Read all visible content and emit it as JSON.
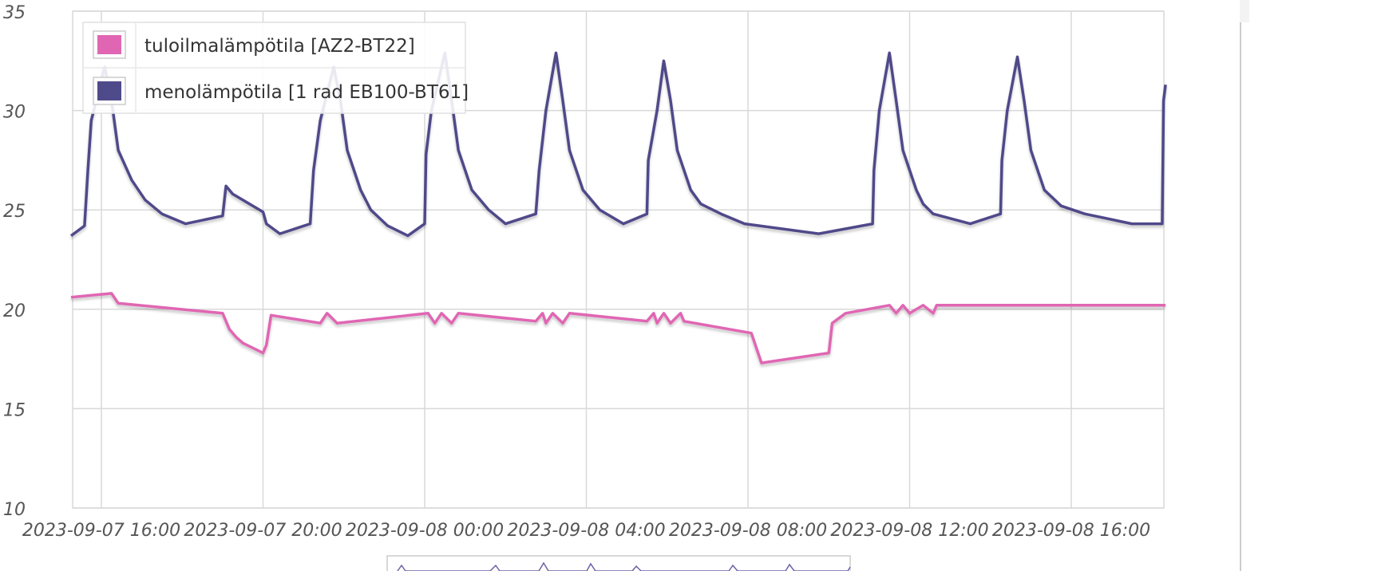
{
  "chart_data": {
    "type": "line",
    "ylim": [
      10,
      35
    ],
    "grid": true,
    "legend_position": "top-left",
    "y_ticks": [
      "10",
      "15",
      "20",
      "25",
      "30",
      "35"
    ],
    "x_tick_labels": [
      "2023-09-07 16:00",
      "2023-09-07 20:00",
      "2023-09-08 00:00",
      "2023-09-08 04:00",
      "2023-09-08 08:00",
      "2023-09-08 12:00",
      "2023-09-08 16:00"
    ],
    "series": [
      {
        "name": "tuloilmalämpötila [AZ2-BT22]",
        "color": "#e066b3",
        "points": [
          [
            "2023-09-07 15:15",
            20.6
          ],
          [
            "2023-09-07 16:15",
            20.8
          ],
          [
            "2023-09-07 16:25",
            20.3
          ],
          [
            "2023-09-07 19:00",
            19.8
          ],
          [
            "2023-09-07 19:10",
            19.0
          ],
          [
            "2023-09-07 19:20",
            18.6
          ],
          [
            "2023-09-07 19:30",
            18.3
          ],
          [
            "2023-09-07 20:00",
            17.8
          ],
          [
            "2023-09-07 20:05",
            18.2
          ],
          [
            "2023-09-07 20:12",
            19.7
          ],
          [
            "2023-09-07 21:25",
            19.3
          ],
          [
            "2023-09-07 21:35",
            19.8
          ],
          [
            "2023-09-07 21:50",
            19.3
          ],
          [
            "2023-09-08 00:05",
            19.8
          ],
          [
            "2023-09-08 00:15",
            19.3
          ],
          [
            "2023-09-08 00:25",
            19.8
          ],
          [
            "2023-09-08 00:40",
            19.3
          ],
          [
            "2023-09-08 00:50",
            19.8
          ],
          [
            "2023-09-08 02:45",
            19.4
          ],
          [
            "2023-09-08 02:55",
            19.8
          ],
          [
            "2023-09-08 03:00",
            19.3
          ],
          [
            "2023-09-08 03:10",
            19.8
          ],
          [
            "2023-09-08 03:25",
            19.3
          ],
          [
            "2023-09-08 03:35",
            19.8
          ],
          [
            "2023-09-08 05:30",
            19.4
          ],
          [
            "2023-09-08 05:40",
            19.8
          ],
          [
            "2023-09-08 05:45",
            19.3
          ],
          [
            "2023-09-08 05:55",
            19.8
          ],
          [
            "2023-09-08 06:05",
            19.3
          ],
          [
            "2023-09-08 06:20",
            19.8
          ],
          [
            "2023-09-08 06:25",
            19.4
          ],
          [
            "2023-09-08 08:05",
            18.8
          ],
          [
            "2023-09-08 08:20",
            17.3
          ],
          [
            "2023-09-08 10:00",
            17.8
          ],
          [
            "2023-09-08 10:05",
            19.3
          ],
          [
            "2023-09-08 10:25",
            19.8
          ],
          [
            "2023-09-08 11:30",
            20.2
          ],
          [
            "2023-09-08 11:40",
            19.8
          ],
          [
            "2023-09-08 11:50",
            20.2
          ],
          [
            "2023-09-08 12:00",
            19.8
          ],
          [
            "2023-09-08 12:20",
            20.2
          ],
          [
            "2023-09-08 12:35",
            19.8
          ],
          [
            "2023-09-08 12:40",
            20.2
          ],
          [
            "2023-09-08 18:20",
            20.2
          ]
        ]
      },
      {
        "name": "menolämpötila [1 rad EB100-BT61]",
        "color": "#4f4a8a",
        "points": [
          [
            "2023-09-07 15:15",
            23.7
          ],
          [
            "2023-09-07 15:35",
            24.2
          ],
          [
            "2023-09-07 15:40",
            27.0
          ],
          [
            "2023-09-07 15:45",
            29.5
          ],
          [
            "2023-09-07 16:05",
            32.2
          ],
          [
            "2023-09-07 16:15",
            30.5
          ],
          [
            "2023-09-07 16:25",
            28.0
          ],
          [
            "2023-09-07 16:45",
            26.5
          ],
          [
            "2023-09-07 17:05",
            25.5
          ],
          [
            "2023-09-07 17:30",
            24.8
          ],
          [
            "2023-09-07 18:05",
            24.3
          ],
          [
            "2023-09-07 19:00",
            24.7
          ],
          [
            "2023-09-07 19:05",
            26.2
          ],
          [
            "2023-09-07 19:15",
            25.8
          ],
          [
            "2023-09-07 20:00",
            24.9
          ],
          [
            "2023-09-07 20:05",
            24.3
          ],
          [
            "2023-09-07 20:25",
            23.8
          ],
          [
            "2023-09-07 21:10",
            24.3
          ],
          [
            "2023-09-07 21:15",
            27.0
          ],
          [
            "2023-09-07 21:25",
            29.5
          ],
          [
            "2023-09-07 21:45",
            32.2
          ],
          [
            "2023-09-07 21:55",
            30.5
          ],
          [
            "2023-09-07 22:05",
            28.0
          ],
          [
            "2023-09-07 22:25",
            26.0
          ],
          [
            "2023-09-07 22:40",
            25.0
          ],
          [
            "2023-09-07 23:05",
            24.2
          ],
          [
            "2023-09-07 23:35",
            23.7
          ],
          [
            "2023-09-08 00:00",
            24.3
          ],
          [
            "2023-09-08 00:02",
            27.8
          ],
          [
            "2023-09-08 00:10",
            30.0
          ],
          [
            "2023-09-08 00:30",
            32.9
          ],
          [
            "2023-09-08 00:40",
            30.5
          ],
          [
            "2023-09-08 00:50",
            28.0
          ],
          [
            "2023-09-08 01:10",
            26.0
          ],
          [
            "2023-09-08 01:35",
            25.0
          ],
          [
            "2023-09-08 02:00",
            24.3
          ],
          [
            "2023-09-08 02:45",
            24.8
          ],
          [
            "2023-09-08 02:50",
            27.0
          ],
          [
            "2023-09-08 03:00",
            30.0
          ],
          [
            "2023-09-08 03:15",
            32.9
          ],
          [
            "2023-09-08 03:25",
            30.5
          ],
          [
            "2023-09-08 03:35",
            28.0
          ],
          [
            "2023-09-08 03:55",
            26.0
          ],
          [
            "2023-09-08 04:20",
            25.0
          ],
          [
            "2023-09-08 04:55",
            24.3
          ],
          [
            "2023-09-08 05:30",
            24.8
          ],
          [
            "2023-09-08 05:32",
            27.5
          ],
          [
            "2023-09-08 05:45",
            30.0
          ],
          [
            "2023-09-08 05:55",
            32.5
          ],
          [
            "2023-09-08 06:05",
            30.5
          ],
          [
            "2023-09-08 06:15",
            28.0
          ],
          [
            "2023-09-08 06:35",
            26.0
          ],
          [
            "2023-09-08 06:50",
            25.3
          ],
          [
            "2023-09-08 07:20",
            24.8
          ],
          [
            "2023-09-08 07:55",
            24.3
          ],
          [
            "2023-09-08 09:45",
            23.8
          ],
          [
            "2023-09-08 11:05",
            24.3
          ],
          [
            "2023-09-08 11:07",
            27.0
          ],
          [
            "2023-09-08 11:15",
            30.0
          ],
          [
            "2023-09-08 11:30",
            32.9
          ],
          [
            "2023-09-08 11:40",
            30.5
          ],
          [
            "2023-09-08 11:50",
            28.0
          ],
          [
            "2023-09-08 12:10",
            26.0
          ],
          [
            "2023-09-08 12:20",
            25.3
          ],
          [
            "2023-09-08 12:35",
            24.8
          ],
          [
            "2023-09-08 13:30",
            24.3
          ],
          [
            "2023-09-08 14:15",
            24.8
          ],
          [
            "2023-09-08 14:17",
            27.5
          ],
          [
            "2023-09-08 14:25",
            30.0
          ],
          [
            "2023-09-08 14:40",
            32.7
          ],
          [
            "2023-09-08 14:50",
            30.5
          ],
          [
            "2023-09-08 15:00",
            28.0
          ],
          [
            "2023-09-08 15:20",
            26.0
          ],
          [
            "2023-09-08 15:45",
            25.2
          ],
          [
            "2023-09-08 16:20",
            24.8
          ],
          [
            "2023-09-08 17:30",
            24.3
          ],
          [
            "2023-09-08 18:15",
            24.3
          ],
          [
            "2023-09-08 18:17",
            30.5
          ],
          [
            "2023-09-08 18:20",
            31.3
          ]
        ]
      }
    ]
  },
  "legend": {
    "items": [
      {
        "label": "tuloilmalämpötila [AZ2-BT22]",
        "color": "#e066b3"
      },
      {
        "label": "menolämpötila [1 rad EB100-BT61]",
        "color": "#4f4a8a"
      }
    ]
  }
}
